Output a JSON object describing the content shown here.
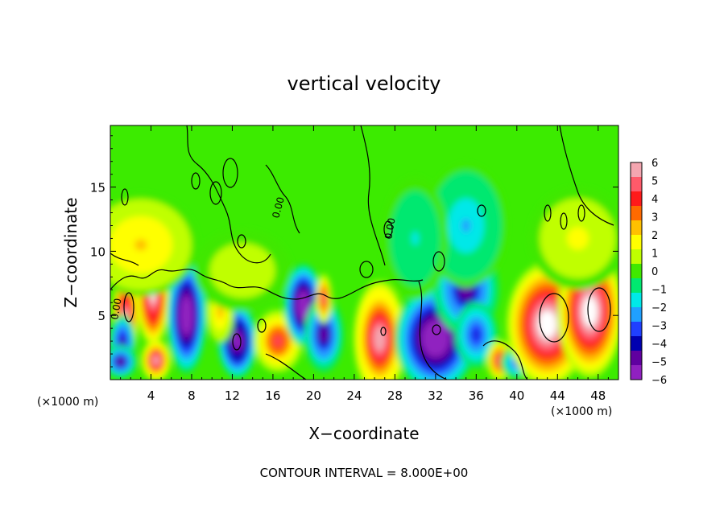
{
  "chart_data": {
    "type": "heatmap",
    "title": "vertical velocity",
    "xlabel": "X−coordinate",
    "ylabel": "Z−coordinate",
    "x_unit_left": "(×1000 m)",
    "x_unit_right": "(×1000 m)",
    "contour_interval_text": "CONTOUR INTERVAL = 8.000E+00",
    "contour_labels": [
      "0.00",
      "0.00",
      "0.00"
    ],
    "xlim": [
      0,
      50
    ],
    "ylim": [
      0,
      19.8
    ],
    "x_ticks": [
      4,
      8,
      12,
      16,
      20,
      24,
      28,
      32,
      36,
      40,
      44,
      48
    ],
    "y_ticks": [
      5,
      10,
      15
    ],
    "x_tick_labels": [
      "4",
      "8",
      "12",
      "16",
      "20",
      "24",
      "28",
      "32",
      "36",
      "40",
      "44",
      "48"
    ],
    "y_tick_labels": [
      "5",
      "10",
      "15"
    ],
    "colorbar": {
      "range": [
        -6,
        6
      ],
      "tick_values": [
        6,
        5,
        4,
        3,
        2,
        1,
        0,
        -1,
        -2,
        -3,
        -4,
        -5,
        -6
      ],
      "tick_labels": [
        "6",
        "5",
        "4",
        "3",
        "2",
        "1",
        "0",
        "−1",
        "−2",
        "−3",
        "−4",
        "−5",
        "−6"
      ],
      "colors": [
        "#F4A6B0",
        "#FF5A6A",
        "#FF1A1A",
        "#FF6A00",
        "#FFC000",
        "#FFFF00",
        "#C0FF00",
        "#40E800",
        "#00E870",
        "#00E8E8",
        "#20A0FF",
        "#2040FF",
        "#0000B0",
        "#6000A0",
        "#9020C0"
      ],
      "saturation_color": "#FFFFFF"
    },
    "background_color": "#3CEB00",
    "cells": [
      {
        "x": 1.5,
        "z": 4.8,
        "sx": 0.8,
        "sz": 2.2,
        "w": 6.5
      },
      {
        "x": 1.2,
        "z": 3.0,
        "sx": 0.8,
        "sz": 1.3,
        "w": -4.5
      },
      {
        "x": 1.0,
        "z": 1.4,
        "sx": 1.0,
        "sz": 0.8,
        "w": -5.0
      },
      {
        "x": 4.2,
        "z": 6.5,
        "sx": 1.0,
        "sz": 2.4,
        "w": 6.5
      },
      {
        "x": 4.5,
        "z": 1.5,
        "sx": 0.9,
        "sz": 1.0,
        "w": 6.0
      },
      {
        "x": 7.5,
        "z": 5.0,
        "sx": 1.2,
        "sz": 2.8,
        "w": -7.0
      },
      {
        "x": 12.5,
        "z": 3.0,
        "sx": 1.2,
        "sz": 1.8,
        "w": -6.5
      },
      {
        "x": 10.8,
        "z": 5.3,
        "sx": 0.9,
        "sz": 1.6,
        "w": 2.5
      },
      {
        "x": 16.5,
        "z": 3.0,
        "sx": 1.5,
        "sz": 1.5,
        "w": 4.5
      },
      {
        "x": 19.0,
        "z": 5.8,
        "sx": 1.2,
        "sz": 2.0,
        "w": -7.0
      },
      {
        "x": 21.0,
        "z": 3.5,
        "sx": 1.2,
        "sz": 1.8,
        "w": -5.0
      },
      {
        "x": 21.0,
        "z": 6.3,
        "sx": 0.5,
        "sz": 1.2,
        "w": 5.0
      },
      {
        "x": 26.5,
        "z": 3.2,
        "sx": 1.6,
        "sz": 2.8,
        "w": 6.0
      },
      {
        "x": 32.0,
        "z": 3.2,
        "sx": 2.5,
        "sz": 2.6,
        "w": -7.0
      },
      {
        "x": 35.0,
        "z": 7.0,
        "sx": 2.0,
        "sz": 2.2,
        "w": -5.0
      },
      {
        "x": 36.0,
        "z": 3.5,
        "sx": 1.3,
        "sz": 1.6,
        "w": -4.0
      },
      {
        "x": 38.3,
        "z": 1.5,
        "sx": 0.8,
        "sz": 1.0,
        "w": 5.0
      },
      {
        "x": 40.0,
        "z": 1.3,
        "sx": 1.0,
        "sz": 0.8,
        "w": -3.5
      },
      {
        "x": 43.0,
        "z": 4.3,
        "sx": 2.5,
        "sz": 3.0,
        "w": 7.5
      },
      {
        "x": 47.2,
        "z": 5.3,
        "sx": 2.0,
        "sz": 3.2,
        "w": 7.5
      },
      {
        "x": 35.0,
        "z": 12.0,
        "sx": 2.5,
        "sz": 3.0,
        "w": -2.0
      },
      {
        "x": 30.0,
        "z": 11.0,
        "sx": 2.0,
        "sz": 3.0,
        "w": -1.2
      },
      {
        "x": 3.0,
        "z": 10.5,
        "sx": 3.5,
        "sz": 2.5,
        "w": 2.2
      },
      {
        "x": 13.0,
        "z": 8.5,
        "sx": 3.0,
        "sz": 2.0,
        "w": 1.0
      },
      {
        "x": 46.0,
        "z": 11.0,
        "sx": 3.0,
        "sz": 2.5,
        "w": 1.5
      }
    ]
  }
}
